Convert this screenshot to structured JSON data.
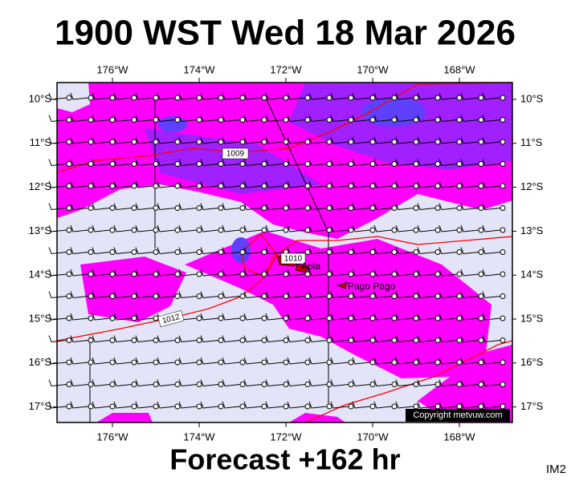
{
  "header": {
    "title": "1900 WST Wed 18 Mar 2026"
  },
  "map": {
    "lon_labels": [
      "176°W",
      "174°W",
      "172°W",
      "170°W",
      "168°W"
    ],
    "lat_labels": [
      "10°S",
      "11°S",
      "12°S",
      "13°S",
      "14°S",
      "15°S",
      "16°S",
      "17°S"
    ],
    "isobar_labels": [
      "1009",
      "1010",
      "1012"
    ],
    "places": [
      "Apia",
      "Pago Pago"
    ],
    "copyright": "Copyright metvuw.com"
  },
  "footer": {
    "forecast": "Forecast +162 hr",
    "code": "IM2"
  }
}
